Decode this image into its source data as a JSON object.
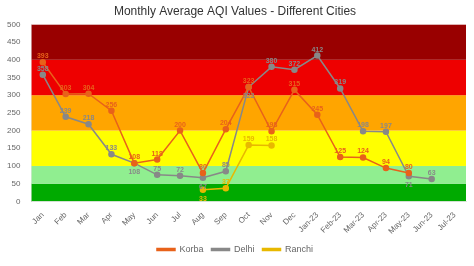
{
  "chart_data": {
    "type": "line",
    "title": "Monthly Average AQI Values - Different Cities",
    "categories": [
      "Jan",
      "Feb",
      "Mar",
      "Apr",
      "May",
      "Jun",
      "Jul",
      "Aug",
      "Sep",
      "Oct",
      "Nov",
      "Dec",
      "Jan-23",
      "Feb-23",
      "Mar-23",
      "Apr-23",
      "May-23",
      "Jun-23",
      "Jul-23"
    ],
    "series": [
      {
        "name": "Korba",
        "color": "#E8621A",
        "marker": "circle",
        "values": [
          393,
          303,
          304,
          256,
          108,
          118,
          200,
          80,
          204,
          323,
          198,
          315,
          245,
          125,
          124,
          94,
          80,
          null,
          null
        ]
      },
      {
        "name": "Delhi",
        "color": "#888888",
        "marker": "circle",
        "values": [
          358,
          239,
          218,
          133,
          108,
          75,
          72,
          67,
          85,
          323,
          380,
          372,
          412,
          319,
          198,
          197,
          71,
          63,
          null
        ]
      },
      {
        "name": "Ranchi",
        "color": "#E8B800",
        "marker": "circle",
        "values": [
          null,
          null,
          null,
          null,
          null,
          null,
          null,
          33,
          37,
          159,
          158,
          null,
          null,
          null,
          null,
          null,
          null,
          null,
          null
        ]
      }
    ],
    "bands": [
      {
        "from": 0,
        "to": 50,
        "color": "#00AA00"
      },
      {
        "from": 50,
        "to": 100,
        "color": "#90EE90"
      },
      {
        "from": 100,
        "to": 200,
        "color": "#FFFF00"
      },
      {
        "from": 200,
        "to": 300,
        "color": "#FFA500"
      },
      {
        "from": 300,
        "to": 400,
        "color": "#EE0000"
      },
      {
        "from": 400,
        "to": 500,
        "color": "#990000"
      }
    ],
    "ylim": [
      0,
      500
    ],
    "yticks": [
      0,
      50,
      100,
      150,
      200,
      250,
      300,
      350,
      400,
      450,
      500
    ],
    "data_labels": true,
    "grid": false,
    "legend": "bottom"
  }
}
